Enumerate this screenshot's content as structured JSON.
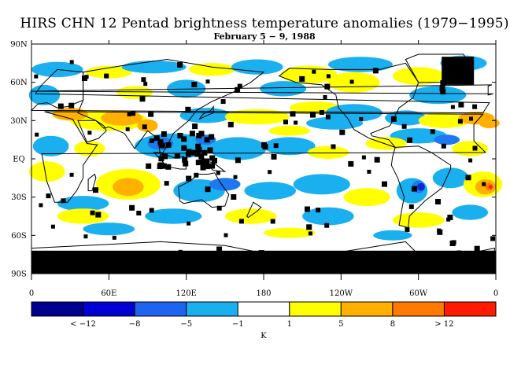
{
  "title": "HIRS CHN 12 Pentad brightness temperature anomalies (1979−1995)",
  "subtitle": "February 5 − 9, 1988",
  "map": {
    "lat_labels": [
      "90N",
      "60N",
      "30N",
      "EQ",
      "30S",
      "60S",
      "90S"
    ],
    "lon_labels": [
      "0",
      "60E",
      "120E",
      "180",
      "120W",
      "60W",
      "0"
    ],
    "data_colors": {
      "cool_light": "#1ab0f0",
      "cool_mid": "#1e78f0",
      "cool_dark": "#0a2ad0",
      "warm_light": "#ffff00",
      "warm_mid": "#ffb000",
      "warm_dark": "#ff7a00",
      "hot": "#ff1a00",
      "missing": "#000000"
    }
  },
  "colorbar": {
    "unit_label": "K",
    "tick_labels": [
      "< −12",
      "−8",
      "−5",
      "−1",
      "1",
      "5",
      "8",
      "> 12"
    ],
    "colors": [
      "#000090",
      "#0000d2",
      "#1e64f0",
      "#1ab0f0",
      "#ffffff",
      "#ffff00",
      "#ffb000",
      "#ff7a00",
      "#ff1a00"
    ]
  }
}
